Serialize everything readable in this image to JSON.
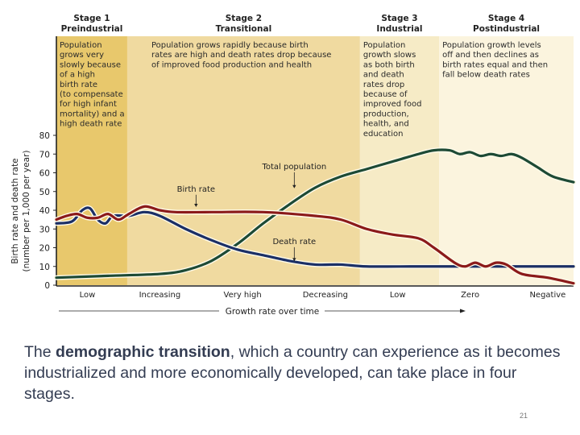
{
  "chart_data": {
    "type": "line",
    "title": "Demographic transition",
    "ylabel_line1": "Birth rate and death rate",
    "ylabel_line2": "(number per 1,000 per year)",
    "xlabel": "Growth rate over time",
    "ylim": [
      0,
      80
    ],
    "yticks": [
      0,
      10,
      20,
      30,
      40,
      50,
      60,
      70,
      80
    ],
    "xlim": [
      0,
      100
    ],
    "grid": false,
    "stages": [
      {
        "title": "Stage 1",
        "subtitle": "Preindustrial",
        "x_range": [
          0,
          13.7
        ],
        "color": "#e8c86c",
        "description": [
          "Population",
          "grows very",
          "slowly because",
          "of a high",
          "birth rate",
          "(to compensate",
          "for high infant",
          "mortality) and a",
          "high death rate"
        ]
      },
      {
        "title": "Stage 2",
        "subtitle": "Transitional",
        "x_range": [
          13.7,
          58.7
        ],
        "color": "#f0daa0",
        "description": [
          "Population grows rapidly because birth",
          "rates are high and death rates drop because",
          "of improved food production and health"
        ]
      },
      {
        "title": "Stage 3",
        "subtitle": "Industrial",
        "x_range": [
          58.7,
          74
        ],
        "color": "#f6ebc6",
        "description": [
          "Population",
          "growth slows",
          "as both birth",
          "and death",
          "rates drop",
          "because of",
          "improved food",
          "production,",
          "health, and",
          "education"
        ]
      },
      {
        "title": "Stage 4",
        "subtitle": "Postindustrial",
        "x_range": [
          74,
          100
        ],
        "color": "#fbf4de",
        "description": [
          "Population growth levels",
          "off and then declines as",
          "birth rates equal and then",
          "fall below death rates"
        ]
      }
    ],
    "categories": [
      "Low",
      "Increasing",
      "Very high",
      "Decreasing",
      "Low",
      "Zero",
      "Negative"
    ],
    "category_positions": [
      6,
      20,
      36,
      52,
      66,
      80,
      95
    ],
    "series": [
      {
        "name": "Birth rate",
        "color": "#8b1a1a",
        "points": [
          [
            0,
            35
          ],
          [
            2,
            37
          ],
          [
            4,
            38
          ],
          [
            6,
            36
          ],
          [
            8,
            36
          ],
          [
            10,
            38
          ],
          [
            12,
            35
          ],
          [
            14,
            38
          ],
          [
            17,
            42
          ],
          [
            20,
            40
          ],
          [
            23,
            39
          ],
          [
            30,
            39
          ],
          [
            40,
            39
          ],
          [
            50,
            37
          ],
          [
            55,
            35
          ],
          [
            60,
            30
          ],
          [
            65,
            27
          ],
          [
            70,
            25
          ],
          [
            73,
            20
          ],
          [
            77,
            12
          ],
          [
            79,
            10
          ],
          [
            81,
            12
          ],
          [
            83,
            10
          ],
          [
            85,
            12
          ],
          [
            87,
            11
          ],
          [
            90,
            6
          ],
          [
            95,
            4
          ],
          [
            100,
            1
          ]
        ]
      },
      {
        "name": "Death rate",
        "color": "#1b2f66",
        "points": [
          [
            0,
            33
          ],
          [
            3,
            34
          ],
          [
            5,
            40
          ],
          [
            6.5,
            41
          ],
          [
            8,
            35
          ],
          [
            9.5,
            33
          ],
          [
            11,
            37
          ],
          [
            14,
            37
          ],
          [
            17,
            39
          ],
          [
            20,
            37
          ],
          [
            25,
            30
          ],
          [
            30,
            24
          ],
          [
            35,
            19
          ],
          [
            40,
            16
          ],
          [
            45,
            13
          ],
          [
            50,
            11
          ],
          [
            55,
            11
          ],
          [
            60,
            10
          ],
          [
            70,
            10
          ],
          [
            80,
            10
          ],
          [
            90,
            10
          ],
          [
            100,
            10
          ]
        ]
      },
      {
        "name": "Total population",
        "color": "#1d4a35",
        "points": [
          [
            0,
            4
          ],
          [
            10,
            5
          ],
          [
            20,
            6
          ],
          [
            25,
            8
          ],
          [
            30,
            13
          ],
          [
            35,
            22
          ],
          [
            40,
            33
          ],
          [
            45,
            43
          ],
          [
            50,
            52
          ],
          [
            55,
            58
          ],
          [
            60,
            62
          ],
          [
            65,
            66
          ],
          [
            70,
            70
          ],
          [
            73,
            72
          ],
          [
            76,
            72
          ],
          [
            78,
            70
          ],
          [
            80,
            71
          ],
          [
            82,
            69
          ],
          [
            84,
            70
          ],
          [
            86,
            69
          ],
          [
            88,
            70
          ],
          [
            90,
            68
          ],
          [
            93,
            63
          ],
          [
            96,
            58
          ],
          [
            100,
            55
          ]
        ]
      }
    ],
    "annotations": [
      {
        "text": "Birth rate",
        "x": 27,
        "y": 50,
        "arrow_to": 40
      },
      {
        "text": "Total population",
        "x": 46,
        "y": 62,
        "arrow_to": 50
      },
      {
        "text": "Death rate",
        "x": 46,
        "y": 22,
        "arrow_to": 11
      }
    ]
  },
  "caption": {
    "prefix": "The ",
    "bold": "demographic transition",
    "suffix": ", which a country can experience as it becomes industrialized and more economically developed, can take place in four stages."
  },
  "slide_number": "21"
}
